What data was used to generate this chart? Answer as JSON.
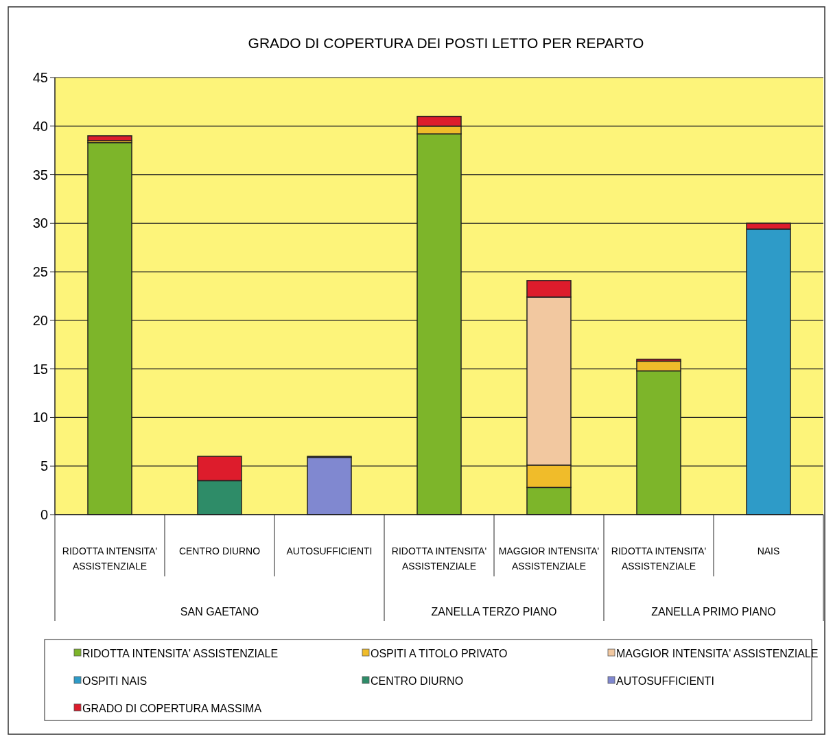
{
  "chart_data": {
    "type": "bar",
    "stacked": true,
    "title": "GRADO DI COPERTURA DEI POSTI LETTO PER REPARTO",
    "categories": [
      "RIDOTTA INTENSITA' ASSISTENZIALE",
      "CENTRO DIURNO",
      "AUTOSUFFICIENTI",
      "RIDOTTA INTENSITA' ASSISTENZIALE",
      "MAGGIOR INTENSITA' ASSISTENZIALE",
      "RIDOTTA INTENSITA' ASSISTENZIALE",
      "NAIS"
    ],
    "series": [
      {
        "name": "RIDOTTA INTENSITA' ASSISTENZIALE",
        "color": "#7db52a",
        "values": [
          38.3,
          null,
          null,
          39.2,
          2.8,
          14.8,
          null
        ]
      },
      {
        "name": "OSPITI A TITOLO PRIVATO",
        "color": "#f0bc2a",
        "values": [
          0.2,
          null,
          null,
          0.8,
          2.3,
          1.0,
          null
        ]
      },
      {
        "name": "MAGGIOR INTENSITA' ASSISTENZIALE",
        "color": "#f2c8a0",
        "values": [
          null,
          null,
          null,
          null,
          17.3,
          null,
          null
        ]
      },
      {
        "name": "OSPITI NAIS",
        "color": "#2e9bc8",
        "values": [
          null,
          null,
          null,
          null,
          null,
          null,
          29.4
        ]
      },
      {
        "name": "CENTRO DIURNO",
        "color": "#2e8c68",
        "values": [
          null,
          3.5,
          null,
          null,
          null,
          null,
          null
        ]
      },
      {
        "name": "AUTOSUFFICIENTI",
        "color": "#8088d0",
        "values": [
          null,
          null,
          5.9,
          null,
          null,
          null,
          null
        ]
      },
      {
        "name": "GRADO DI COPERTURA MASSIMA",
        "color": "#dd1c2c",
        "values": [
          0.5,
          2.5,
          0.1,
          1.0,
          1.7,
          0.2,
          0.6
        ]
      }
    ],
    "annotations": [
      "SAN GAETANO",
      "ZANELLA TERZO PIANO",
      "ZANELLA PRIMO PIANO"
    ],
    "ylim": [
      0,
      45
    ],
    "yticks": [
      0,
      5,
      10,
      15,
      20,
      25,
      30,
      35,
      40,
      45
    ],
    "grid": "y",
    "legend": "bottom"
  }
}
